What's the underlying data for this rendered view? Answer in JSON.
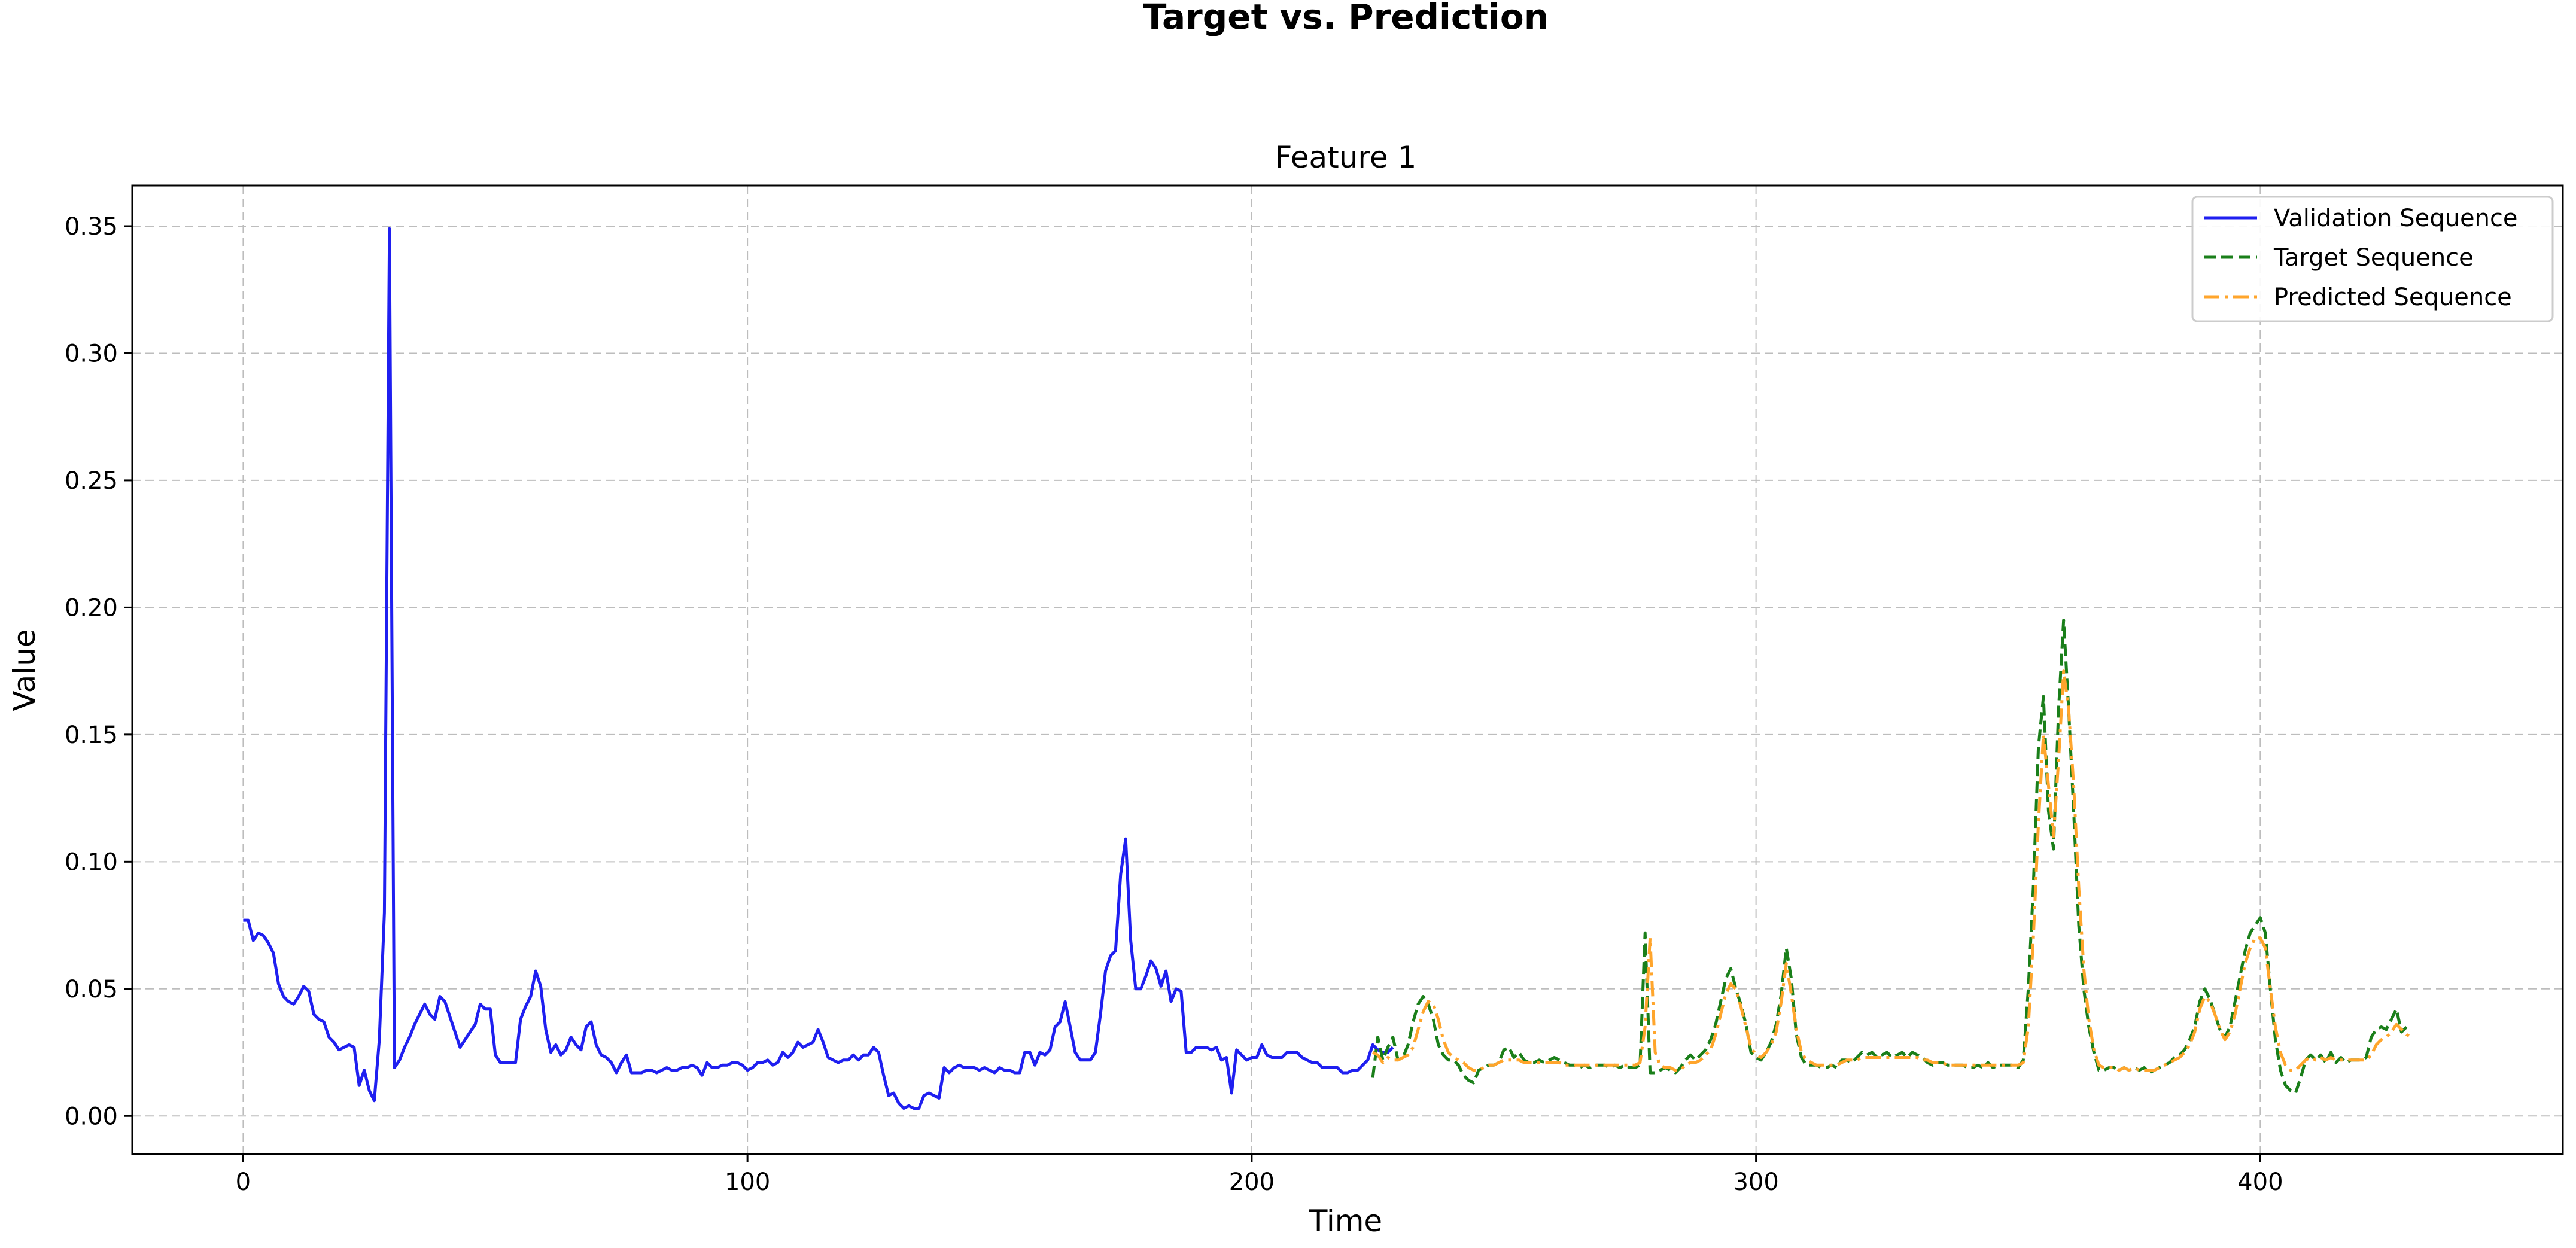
{
  "figure": {
    "suptitle": "Target vs. Prediction"
  },
  "chart_data": {
    "type": "line",
    "title": "Feature 1",
    "xlabel": "Time",
    "ylabel": "Value",
    "xlim": [
      -22,
      460
    ],
    "ylim": [
      -0.015,
      0.366
    ],
    "xticks": [
      0,
      100,
      200,
      300,
      400
    ],
    "xtick_labels": [
      "0",
      "100",
      "200",
      "300",
      "400"
    ],
    "yticks": [
      0.0,
      0.05,
      0.1,
      0.15,
      0.2,
      0.25,
      0.3,
      0.35
    ],
    "ytick_labels": [
      "0.00",
      "0.05",
      "0.10",
      "0.15",
      "0.20",
      "0.25",
      "0.30",
      "0.35"
    ],
    "grid": true,
    "legend_position": "top-right",
    "series": [
      {
        "name": "Validation Sequence",
        "color": "#1f1ff0",
        "style": "solid",
        "x_start": 0,
        "values": [
          0.077,
          0.077,
          0.069,
          0.072,
          0.071,
          0.068,
          0.064,
          0.052,
          0.047,
          0.045,
          0.044,
          0.047,
          0.051,
          0.049,
          0.04,
          0.038,
          0.037,
          0.031,
          0.029,
          0.026,
          0.027,
          0.028,
          0.027,
          0.012,
          0.018,
          0.01,
          0.006,
          0.03,
          0.08,
          0.349,
          0.019,
          0.022,
          0.027,
          0.031,
          0.036,
          0.04,
          0.044,
          0.04,
          0.038,
          0.047,
          0.045,
          0.039,
          0.033,
          0.027,
          0.03,
          0.033,
          0.036,
          0.044,
          0.042,
          0.042,
          0.024,
          0.021,
          0.021,
          0.021,
          0.021,
          0.038,
          0.043,
          0.047,
          0.057,
          0.051,
          0.034,
          0.025,
          0.028,
          0.024,
          0.026,
          0.031,
          0.028,
          0.026,
          0.035,
          0.037,
          0.028,
          0.024,
          0.023,
          0.021,
          0.017,
          0.021,
          0.024,
          0.017,
          0.017,
          0.017,
          0.018,
          0.018,
          0.017,
          0.018,
          0.019,
          0.018,
          0.018,
          0.019,
          0.019,
          0.02,
          0.019,
          0.016,
          0.021,
          0.019,
          0.019,
          0.02,
          0.02,
          0.021,
          0.021,
          0.02,
          0.018,
          0.019,
          0.021,
          0.021,
          0.022,
          0.02,
          0.021,
          0.025,
          0.023,
          0.025,
          0.029,
          0.027,
          0.028,
          0.029,
          0.034,
          0.029,
          0.023,
          0.022,
          0.021,
          0.022,
          0.022,
          0.024,
          0.022,
          0.024,
          0.024,
          0.027,
          0.025,
          0.016,
          0.008,
          0.009,
          0.005,
          0.003,
          0.004,
          0.003,
          0.003,
          0.008,
          0.009,
          0.008,
          0.007,
          0.019,
          0.017,
          0.019,
          0.02,
          0.019,
          0.019,
          0.019,
          0.018,
          0.019,
          0.018,
          0.017,
          0.019,
          0.018,
          0.018,
          0.017,
          0.017,
          0.025,
          0.025,
          0.02,
          0.025,
          0.024,
          0.026,
          0.035,
          0.037,
          0.045,
          0.035,
          0.025,
          0.022,
          0.022,
          0.022,
          0.025,
          0.04,
          0.057,
          0.063,
          0.065,
          0.095,
          0.109,
          0.069,
          0.05,
          0.05,
          0.055,
          0.061,
          0.058,
          0.051,
          0.057,
          0.045,
          0.05,
          0.049,
          0.025,
          0.025,
          0.027,
          0.027,
          0.027,
          0.026,
          0.027,
          0.022,
          0.023,
          0.009,
          0.026,
          0.024,
          0.022,
          0.023,
          0.023,
          0.028,
          0.024,
          0.023,
          0.023,
          0.023,
          0.025,
          0.025,
          0.025,
          0.023,
          0.022,
          0.021,
          0.021,
          0.019,
          0.019,
          0.019,
          0.019,
          0.017,
          0.017,
          0.018,
          0.018,
          0.02,
          0.022,
          0.028,
          0.026,
          0.025,
          0.025,
          0.027
        ]
      },
      {
        "name": "Target Sequence",
        "color": "#1a7f1a",
        "style": "dashed",
        "x_start": 224,
        "values": [
          0.015,
          0.031,
          0.022,
          0.027,
          0.031,
          0.022,
          0.023,
          0.028,
          0.037,
          0.044,
          0.047,
          0.044,
          0.038,
          0.028,
          0.024,
          0.022,
          0.022,
          0.02,
          0.016,
          0.014,
          0.013,
          0.018,
          0.019,
          0.02,
          0.02,
          0.021,
          0.026,
          0.027,
          0.023,
          0.025,
          0.022,
          0.021,
          0.021,
          0.022,
          0.021,
          0.022,
          0.023,
          0.022,
          0.021,
          0.02,
          0.02,
          0.019,
          0.02,
          0.019,
          0.02,
          0.02,
          0.02,
          0.019,
          0.02,
          0.019,
          0.02,
          0.019,
          0.019,
          0.02,
          0.072,
          0.017,
          0.017,
          0.018,
          0.019,
          0.018,
          0.017,
          0.019,
          0.022,
          0.024,
          0.022,
          0.024,
          0.026,
          0.03,
          0.036,
          0.045,
          0.054,
          0.058,
          0.05,
          0.044,
          0.036,
          0.025,
          0.023,
          0.022,
          0.025,
          0.029,
          0.036,
          0.048,
          0.066,
          0.054,
          0.032,
          0.023,
          0.02,
          0.02,
          0.02,
          0.019,
          0.019,
          0.02,
          0.019,
          0.022,
          0.022,
          0.021,
          0.023,
          0.025,
          0.024,
          0.025,
          0.023,
          0.024,
          0.025,
          0.023,
          0.024,
          0.025,
          0.023,
          0.025,
          0.024,
          0.023,
          0.021,
          0.02,
          0.021,
          0.021,
          0.02,
          0.02,
          0.02,
          0.02,
          0.019,
          0.019,
          0.02,
          0.019,
          0.021,
          0.019,
          0.02,
          0.02,
          0.02,
          0.02,
          0.019,
          0.022,
          0.05,
          0.09,
          0.145,
          0.165,
          0.12,
          0.105,
          0.16,
          0.195,
          0.16,
          0.12,
          0.075,
          0.05,
          0.035,
          0.025,
          0.018,
          0.018,
          0.019,
          0.019,
          0.018,
          0.019,
          0.018,
          0.019,
          0.018,
          0.019,
          0.017,
          0.018,
          0.019,
          0.02,
          0.021,
          0.023,
          0.024,
          0.026,
          0.03,
          0.035,
          0.045,
          0.05,
          0.046,
          0.04,
          0.034,
          0.031,
          0.035,
          0.045,
          0.055,
          0.065,
          0.072,
          0.075,
          0.078,
          0.072,
          0.05,
          0.03,
          0.018,
          0.012,
          0.01,
          0.009,
          0.015,
          0.022,
          0.024,
          0.022,
          0.024,
          0.021,
          0.025,
          0.021,
          0.023,
          0.021,
          0.022,
          0.022,
          0.022,
          0.023,
          0.031,
          0.034,
          0.035,
          0.034,
          0.038,
          0.042,
          0.033,
          0.035
        ]
      },
      {
        "name": "Predicted Sequence",
        "color": "#ffa52c",
        "style": "dashdot",
        "x_start": 224,
        "values": [
          0.025,
          0.024,
          0.021,
          0.023,
          0.022,
          0.022,
          0.023,
          0.024,
          0.027,
          0.034,
          0.041,
          0.045,
          0.044,
          0.038,
          0.03,
          0.025,
          0.023,
          0.022,
          0.021,
          0.019,
          0.018,
          0.018,
          0.019,
          0.02,
          0.02,
          0.021,
          0.022,
          0.022,
          0.022,
          0.022,
          0.021,
          0.021,
          0.021,
          0.021,
          0.021,
          0.021,
          0.021,
          0.021,
          0.02,
          0.02,
          0.02,
          0.02,
          0.02,
          0.02,
          0.02,
          0.02,
          0.02,
          0.02,
          0.02,
          0.02,
          0.02,
          0.02,
          0.02,
          0.021,
          0.035,
          0.07,
          0.025,
          0.02,
          0.019,
          0.019,
          0.018,
          0.018,
          0.02,
          0.021,
          0.021,
          0.022,
          0.024,
          0.026,
          0.032,
          0.04,
          0.048,
          0.052,
          0.05,
          0.043,
          0.035,
          0.027,
          0.024,
          0.023,
          0.025,
          0.028,
          0.033,
          0.045,
          0.06,
          0.048,
          0.034,
          0.025,
          0.022,
          0.021,
          0.02,
          0.02,
          0.02,
          0.02,
          0.02,
          0.021,
          0.022,
          0.022,
          0.022,
          0.023,
          0.023,
          0.023,
          0.023,
          0.023,
          0.023,
          0.023,
          0.023,
          0.023,
          0.023,
          0.023,
          0.023,
          0.022,
          0.022,
          0.021,
          0.021,
          0.021,
          0.02,
          0.02,
          0.02,
          0.02,
          0.02,
          0.02,
          0.02,
          0.02,
          0.02,
          0.02,
          0.02,
          0.02,
          0.02,
          0.02,
          0.02,
          0.021,
          0.035,
          0.07,
          0.115,
          0.15,
          0.13,
          0.11,
          0.14,
          0.175,
          0.16,
          0.13,
          0.09,
          0.058,
          0.038,
          0.026,
          0.02,
          0.019,
          0.019,
          0.019,
          0.018,
          0.019,
          0.018,
          0.019,
          0.018,
          0.018,
          0.018,
          0.018,
          0.019,
          0.02,
          0.021,
          0.022,
          0.023,
          0.025,
          0.028,
          0.033,
          0.042,
          0.047,
          0.045,
          0.04,
          0.034,
          0.03,
          0.033,
          0.04,
          0.05,
          0.06,
          0.066,
          0.07,
          0.07,
          0.066,
          0.05,
          0.035,
          0.025,
          0.02,
          0.018,
          0.018,
          0.02,
          0.022,
          0.023,
          0.022,
          0.023,
          0.022,
          0.023,
          0.022,
          0.022,
          0.022,
          0.022,
          0.022,
          0.022,
          0.022,
          0.024,
          0.028,
          0.03,
          0.031,
          0.033,
          0.036,
          0.034,
          0.032,
          0.031
        ]
      }
    ]
  }
}
